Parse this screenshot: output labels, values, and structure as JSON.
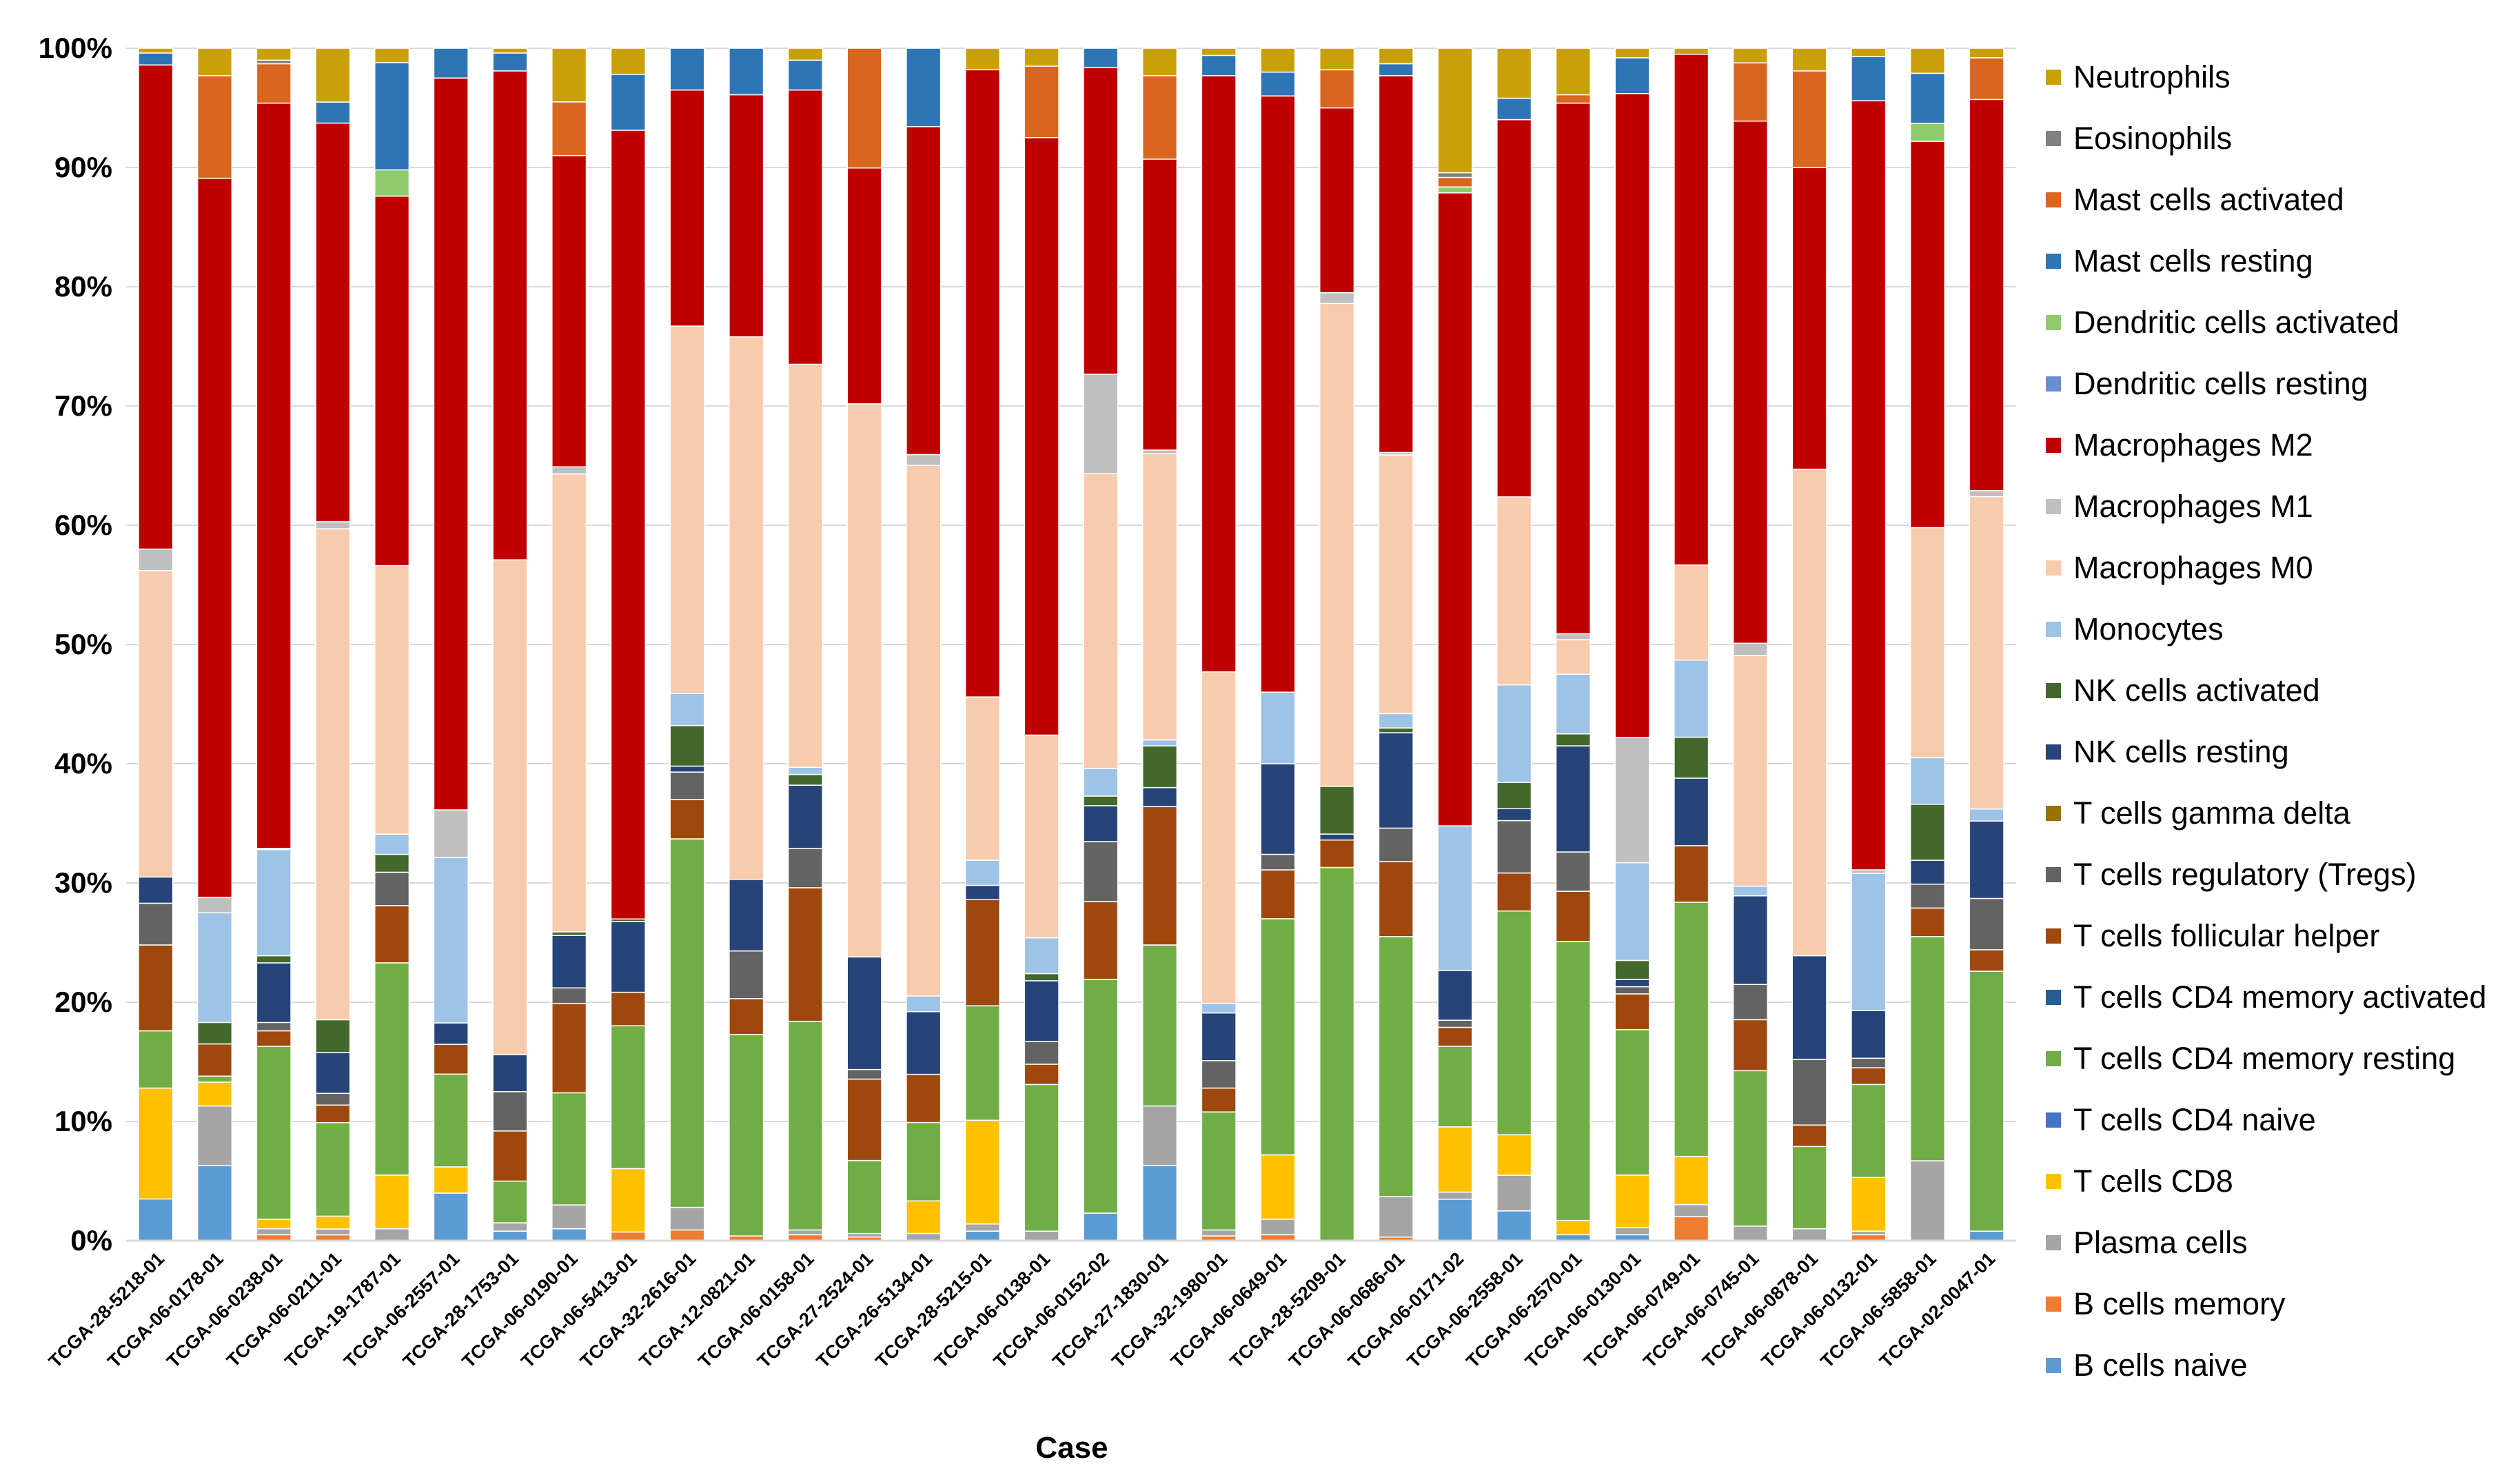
{
  "chart_data": {
    "type": "bar",
    "stacked": true,
    "percent": true,
    "title": "",
    "xlabel": "Case",
    "ylabel": "",
    "ylim": [
      0,
      100
    ],
    "yticks": [
      "0%",
      "10%",
      "20%",
      "30%",
      "40%",
      "50%",
      "60%",
      "70%",
      "80%",
      "90%",
      "100%"
    ],
    "legend_position": "right",
    "categories": [
      "TCGA-28-5218-01",
      "TCGA-06-0178-01",
      "TCGA-06-0238-01",
      "TCGA-06-0211-01",
      "TCGA-19-1787-01",
      "TCGA-06-2557-01",
      "TCGA-28-1753-01",
      "TCGA-06-0190-01",
      "TCGA-06-5413-01",
      "TCGA-32-2616-01",
      "TCGA-12-0821-01",
      "TCGA-06-0158-01",
      "TCGA-27-2524-01",
      "TCGA-26-5134-01",
      "TCGA-28-5215-01",
      "TCGA-06-0138-01",
      "TCGA-06-0152-02",
      "TCGA-27-1830-01",
      "TCGA-32-1980-01",
      "TCGA-06-0649-01",
      "TCGA-28-5209-01",
      "TCGA-06-0686-01",
      "TCGA-06-0171-02",
      "TCGA-06-2558-01",
      "TCGA-06-2570-01",
      "TCGA-06-0130-01",
      "TCGA-06-0749-01",
      "TCGA-06-0745-01",
      "TCGA-06-0878-01",
      "TCGA-06-0132-01",
      "TCGA-06-5858-01",
      "TCGA-02-0047-01"
    ],
    "series": [
      {
        "name": "B cells naive",
        "color": "#5B9BD5",
        "values": [
          3.5,
          6.3,
          0,
          0,
          0,
          4,
          0.8,
          1,
          0,
          0,
          0,
          0,
          0,
          0,
          0.8,
          0,
          2.3,
          6.3,
          0,
          0,
          0,
          0,
          3.5,
          2.5,
          0.5,
          0.5,
          0,
          0,
          0,
          0,
          0,
          0.8
        ]
      },
      {
        "name": "B cells memory",
        "color": "#ED7D31",
        "values": [
          0,
          0,
          0.5,
          0.5,
          0,
          0,
          0,
          0,
          0.7,
          0.9,
          0.4,
          0.5,
          0.3,
          0,
          0,
          0,
          0,
          0,
          0.4,
          0.5,
          0,
          0.3,
          0,
          0,
          0,
          0,
          2,
          0,
          0,
          0.5,
          0,
          0
        ]
      },
      {
        "name": "Plasma cells",
        "color": "#A5A5A5",
        "values": [
          0,
          5,
          0.5,
          0.5,
          1,
          0,
          0.7,
          2,
          0,
          1.9,
          0,
          0.4,
          0.3,
          0.6,
          0.6,
          0.8,
          0,
          5,
          0.5,
          1.3,
          0,
          3.4,
          0.6,
          3,
          0,
          0.6,
          1,
          1.2,
          1,
          0.3,
          6.7,
          0
        ]
      },
      {
        "name": "T cells CD8",
        "color": "#FFC000",
        "values": [
          9.3,
          2,
          0.8,
          1.1,
          4.5,
          2.2,
          0,
          0,
          5.1,
          0,
          0,
          0,
          0,
          2.7,
          8.7,
          0,
          0,
          0,
          0,
          5.4,
          0,
          0,
          5.5,
          3.4,
          1.2,
          4.4,
          4,
          0,
          0,
          4.5,
          0,
          0
        ]
      },
      {
        "name": "T cells CD4 naive",
        "color": "#4472C4",
        "values": [
          0,
          0,
          0,
          0,
          0,
          0,
          0,
          0,
          0,
          0,
          0,
          0,
          0,
          0,
          0,
          0,
          0,
          0,
          0,
          0,
          0,
          0,
          0,
          0,
          0,
          0,
          0,
          0,
          0,
          0,
          0,
          0
        ]
      },
      {
        "name": "T cells CD4 memory resting",
        "color": "#70AD47",
        "values": [
          4.8,
          0.5,
          14.5,
          8,
          17.8,
          7.8,
          3.5,
          9.4,
          11.5,
          30.9,
          16.9,
          17.5,
          6.1,
          6.5,
          9.6,
          12.3,
          19.5,
          13.5,
          9.9,
          19.8,
          31.3,
          21.8,
          6.8,
          18.8,
          23.4,
          12.2,
          21.1,
          12.8,
          6.9,
          7.8,
          18.8,
          21.8
        ]
      },
      {
        "name": "T cells CD4 memory activated",
        "color": "#255E91",
        "values": [
          0,
          0,
          0,
          0,
          0,
          0,
          0,
          0,
          0,
          0,
          0,
          0,
          0,
          0,
          0,
          0,
          0,
          0,
          0,
          0,
          0,
          0,
          0,
          0,
          0,
          0,
          0,
          0,
          0,
          0,
          0,
          0
        ]
      },
      {
        "name": "T cells follicular helper",
        "color": "#9E480E",
        "values": [
          7.2,
          2.7,
          1.3,
          1.5,
          4.8,
          2.5,
          4.2,
          7.5,
          2.7,
          3.3,
          3,
          11.2,
          6.8,
          4,
          8.9,
          1.7,
          6.5,
          11.6,
          2,
          4.1,
          2.3,
          6.3,
          1.6,
          3.2,
          4.2,
          3,
          4.7,
          4.2,
          1.8,
          1.4,
          2.4,
          1.8
        ]
      },
      {
        "name": "T cells regulatory (Tregs)",
        "color": "#636363",
        "values": [
          3.5,
          0,
          0.7,
          1,
          2.8,
          0,
          3.3,
          1.3,
          0,
          2.3,
          4,
          3.3,
          0.8,
          0,
          0,
          1.9,
          5,
          0,
          2.3,
          1.3,
          0,
          2.8,
          0.6,
          4.4,
          3.3,
          0.6,
          0,
          2.9,
          5.5,
          0.8,
          2,
          4.3
        ]
      },
      {
        "name": "T cells gamma delta",
        "color": "#997300",
        "values": [
          0,
          0,
          0,
          0,
          0,
          0,
          0,
          0,
          0,
          0,
          0,
          0,
          0,
          0,
          0,
          0,
          0,
          0,
          0,
          0,
          0,
          0,
          0,
          0,
          0,
          0,
          0,
          0,
          0,
          0,
          0,
          0
        ]
      },
      {
        "name": "NK cells resting",
        "color": "#264478",
        "values": [
          2.2,
          0,
          5,
          3.5,
          0,
          1.8,
          3.1,
          4.4,
          5.7,
          0.5,
          6,
          5.3,
          9.4,
          5.2,
          1.2,
          5.1,
          3,
          1.6,
          4,
          7.6,
          0.5,
          8,
          4.2,
          1,
          8.9,
          0.6,
          5.6,
          7.3,
          8.7,
          4,
          2,
          6.5
        ]
      },
      {
        "name": "NK cells activated",
        "color": "#43682B",
        "values": [
          0,
          1.8,
          0.6,
          2.8,
          1.5,
          0,
          0,
          0.3,
          0.2,
          3.4,
          0,
          0.9,
          0,
          0,
          0,
          0.6,
          0.8,
          3.5,
          0,
          0,
          4,
          0.4,
          0,
          2.2,
          1,
          1.6,
          3.4,
          0,
          0,
          0,
          4.7,
          0
        ]
      },
      {
        "name": "Monocytes",
        "color": "#9DC3E6",
        "values": [
          0,
          9.2,
          8.9,
          0,
          1.7,
          13.9,
          0,
          0,
          0,
          2.7,
          0,
          0.6,
          0,
          1.3,
          2.1,
          3,
          2.3,
          0.5,
          0.8,
          6,
          0,
          1.2,
          12.2,
          8.2,
          5,
          8.2,
          6.4,
          0.8,
          0,
          11.5,
          3.9,
          1
        ]
      },
      {
        "name": "Macrophages M0",
        "color": "#F8CBAD",
        "values": [
          25.7,
          0,
          0,
          42,
          22.5,
          0,
          41.5,
          38.4,
          0,
          30.8,
          45.5,
          33.8,
          46.2,
          44,
          13.7,
          17,
          24.6,
          24,
          27.8,
          0,
          40.5,
          21.7,
          0,
          15.8,
          2.9,
          0,
          7.9,
          19,
          40.8,
          0,
          19.3,
          26.2
        ]
      },
      {
        "name": "Macrophages M1",
        "color": "#BFBFBF",
        "values": [
          1.8,
          1.3,
          0.1,
          0.6,
          0,
          4,
          0,
          0.6,
          0,
          0,
          0,
          0,
          0,
          0.9,
          0,
          0,
          8.3,
          0.3,
          0,
          0,
          0.9,
          0.2,
          0,
          0,
          0.5,
          10.5,
          0,
          1,
          0,
          0.3,
          0,
          0.5
        ]
      },
      {
        "name": "Macrophages M2",
        "color": "#C00000",
        "values": [
          40.6,
          60.3,
          62.5,
          34.1,
          31,
          61.5,
          41,
          26.1,
          63.5,
          19.8,
          20.3,
          23,
          19.7,
          27.2,
          52.6,
          50.1,
          25.6,
          24.4,
          50,
          50,
          15.5,
          31.6,
          53.4,
          31.7,
          44.5,
          54,
          42.4,
          43,
          25.3,
          64.5,
          32.4,
          32.8
        ]
      },
      {
        "name": "Dendritic cells resting",
        "color": "#698ED0",
        "values": [
          0,
          0,
          0,
          0,
          0,
          0,
          0,
          0,
          0,
          0,
          0,
          0,
          0,
          0,
          0,
          0,
          0,
          0,
          0,
          0,
          0,
          0,
          0,
          0,
          0,
          0,
          0,
          0,
          0,
          0,
          0,
          0
        ]
      },
      {
        "name": "Dendritic cells activated",
        "color": "#8FCC6B",
        "values": [
          0,
          0,
          0,
          0,
          2.2,
          0,
          0,
          0,
          0,
          0,
          0,
          0,
          0,
          0,
          0,
          0,
          0,
          0,
          0,
          0,
          0,
          0,
          0.5,
          0,
          0,
          0,
          0,
          0,
          0,
          0,
          1.5,
          0
        ]
      },
      {
        "name": "Mast cells resting",
        "color": "#2E75B6",
        "values": [
          1,
          0,
          0,
          1.8,
          9,
          2.5,
          1.5,
          0,
          4.5,
          3.5,
          3.9,
          2.5,
          0,
          6.5,
          0,
          0,
          1.6,
          0,
          1.7,
          2,
          0,
          1,
          0,
          1.8,
          0,
          3,
          0,
          0,
          0,
          3.7,
          4.2,
          0
        ]
      },
      {
        "name": "Mast cells activated",
        "color": "#D8661F",
        "values": [
          0,
          8.6,
          3.3,
          0,
          0,
          0,
          0,
          4.5,
          0,
          0,
          0,
          0,
          10,
          0,
          0,
          6,
          0,
          7,
          0,
          0,
          3.2,
          0,
          0.8,
          0,
          0.7,
          0,
          0,
          4.8,
          8.1,
          0,
          0,
          3.5
        ]
      },
      {
        "name": "Eosinophils",
        "color": "#808080",
        "values": [
          0,
          0,
          0.3,
          0,
          0,
          0,
          0,
          0,
          0,
          0,
          0,
          0,
          0,
          0,
          0,
          0,
          0,
          0,
          0,
          0,
          0,
          0,
          0.4,
          0,
          0,
          0,
          0,
          0,
          0,
          0,
          0,
          0
        ]
      },
      {
        "name": "Neutrophils",
        "color": "#C9A008",
        "values": [
          0.4,
          2.3,
          1,
          4.6,
          1.2,
          0,
          0.4,
          4.5,
          2.1,
          0,
          0,
          1,
          0,
          0,
          1.8,
          1.5,
          0,
          2.3,
          0.6,
          2,
          1.8,
          1.3,
          10.5,
          4.2,
          3.9,
          0.8,
          0.5,
          1.2,
          1.9,
          0.7,
          2.1,
          0.8
        ]
      }
    ]
  }
}
